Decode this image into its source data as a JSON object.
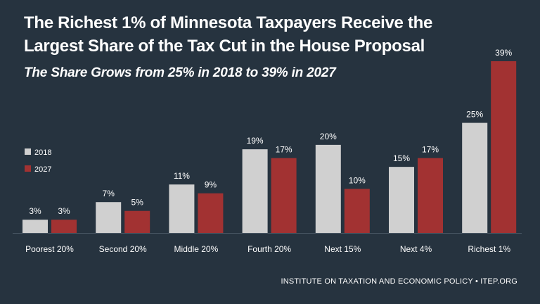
{
  "header": {
    "title": "The Richest 1% of Minnesota Taxpayers Receive the\nLargest Share of the Tax Cut in the House Proposal",
    "subtitle": "The Share Grows from 25% in 2018 to 39% in 2027"
  },
  "source": "INSTITUTE ON TAXATION AND ECONOMIC POLICY • ITEP.ORG",
  "colors": {
    "background": "#26333f",
    "series_2018": "#d0d0d0",
    "series_2027": "#a23232"
  },
  "chart_data": {
    "type": "bar",
    "categories": [
      "Poorest 20%",
      "Second 20%",
      "Middle 20%",
      "Fourth 20%",
      "Next 15%",
      "Next 4%",
      "Richest 1%"
    ],
    "series": [
      {
        "name": "2018",
        "values": [
          3,
          7,
          11,
          19,
          20,
          15,
          25
        ],
        "labels": [
          "3%",
          "7%",
          "11%",
          "19%",
          "20%",
          "15%",
          "25%"
        ]
      },
      {
        "name": "2027",
        "values": [
          3,
          5,
          9,
          17,
          10,
          17,
          39
        ],
        "labels": [
          "3%",
          "5%",
          "9%",
          "17%",
          "10%",
          "17%",
          "39%"
        ]
      }
    ],
    "ylim": [
      0,
      39
    ],
    "legend_position": "left",
    "grid": false
  }
}
